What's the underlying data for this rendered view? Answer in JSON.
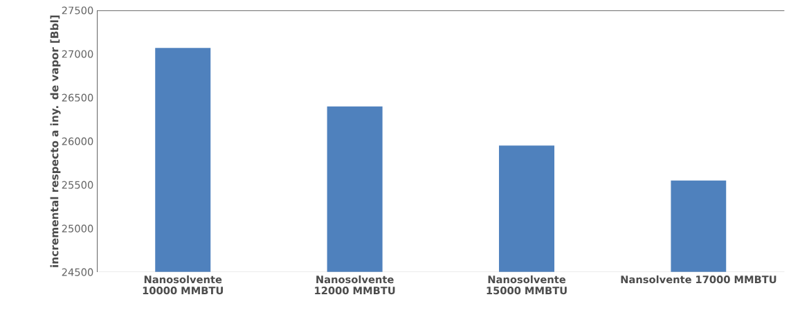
{
  "chart_data": {
    "type": "bar",
    "ylabel": "incremental respecto a iny. de vapor [Bbl]",
    "categories": [
      "Nanosolvente 10000 MMBTU",
      "Nanosolvente 12000 MMBTU",
      "Nanosolvente 15000 MMBTU",
      "Nansolvente 17000 MMBTU"
    ],
    "values": [
      27070,
      26400,
      25950,
      25550
    ],
    "color": "#4f81bd",
    "ylim": [
      24500,
      27500
    ],
    "yticks": [
      24500,
      25000,
      25500,
      26000,
      26500,
      27000,
      27500
    ],
    "grid": false
  }
}
